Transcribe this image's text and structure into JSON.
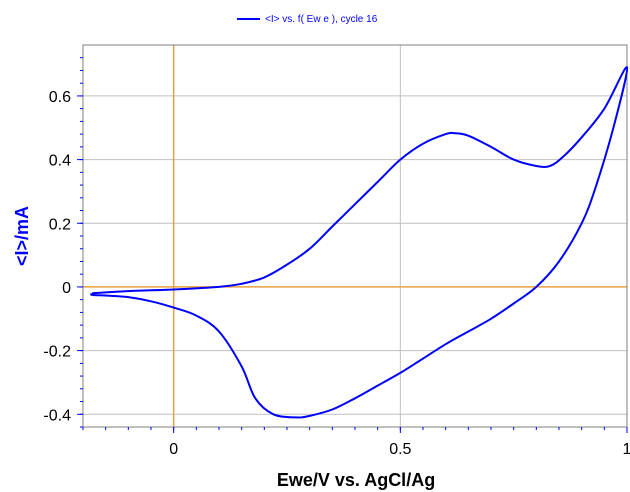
{
  "chart_data": {
    "type": "line",
    "legend": {
      "label": "<I> vs. f( Ew e ), cycle 16",
      "placement": "top-center"
    },
    "xlabel": "Ewe/V vs. AgCl/Ag",
    "ylabel": "<I>/mA",
    "xlim": [
      -0.2,
      1.0
    ],
    "ylim": [
      -0.44,
      0.76
    ],
    "grid": true,
    "x_ticks": [
      {
        "value": 0,
        "label": "0"
      },
      {
        "value": 0.5,
        "label": "0.5"
      },
      {
        "value": 1,
        "label": "1"
      }
    ],
    "y_ticks": [
      {
        "value": -0.4,
        "label": "-0.4"
      },
      {
        "value": -0.2,
        "label": "-0.2"
      },
      {
        "value": 0,
        "label": "0"
      },
      {
        "value": 0.2,
        "label": "0.2"
      },
      {
        "value": 0.4,
        "label": "0.4"
      },
      {
        "value": 0.6,
        "label": "0.6"
      }
    ],
    "reference_lines": {
      "x": 0,
      "y": 0,
      "color": "#e8a040"
    },
    "series": [
      {
        "color": "#0000ff",
        "x": [
          -0.18,
          -0.1,
          0.0,
          0.1,
          0.15,
          0.2,
          0.25,
          0.3,
          0.35,
          0.4,
          0.45,
          0.5,
          0.55,
          0.6,
          0.62,
          0.65,
          0.7,
          0.75,
          0.8,
          0.83,
          0.86,
          0.9,
          0.95,
          1.0,
          0.97,
          0.93,
          0.9,
          0.85,
          0.8,
          0.75,
          0.7,
          0.65,
          0.6,
          0.55,
          0.5,
          0.45,
          0.4,
          0.35,
          0.3,
          0.27,
          0.22,
          0.18,
          0.15,
          0.1,
          0.05,
          0.0,
          -0.05,
          -0.1,
          -0.15,
          -0.18
        ],
        "y": [
          -0.02,
          -0.013,
          -0.008,
          0.0,
          0.01,
          0.03,
          0.07,
          0.12,
          0.19,
          0.26,
          0.33,
          0.4,
          0.45,
          0.48,
          0.483,
          0.475,
          0.44,
          0.4,
          0.38,
          0.38,
          0.41,
          0.47,
          0.56,
          0.69,
          0.5,
          0.31,
          0.2,
          0.08,
          0.0,
          -0.052,
          -0.1,
          -0.14,
          -0.18,
          -0.225,
          -0.27,
          -0.31,
          -0.35,
          -0.385,
          -0.405,
          -0.41,
          -0.4,
          -0.35,
          -0.25,
          -0.14,
          -0.09,
          -0.065,
          -0.045,
          -0.032,
          -0.027,
          -0.025
        ]
      }
    ]
  }
}
